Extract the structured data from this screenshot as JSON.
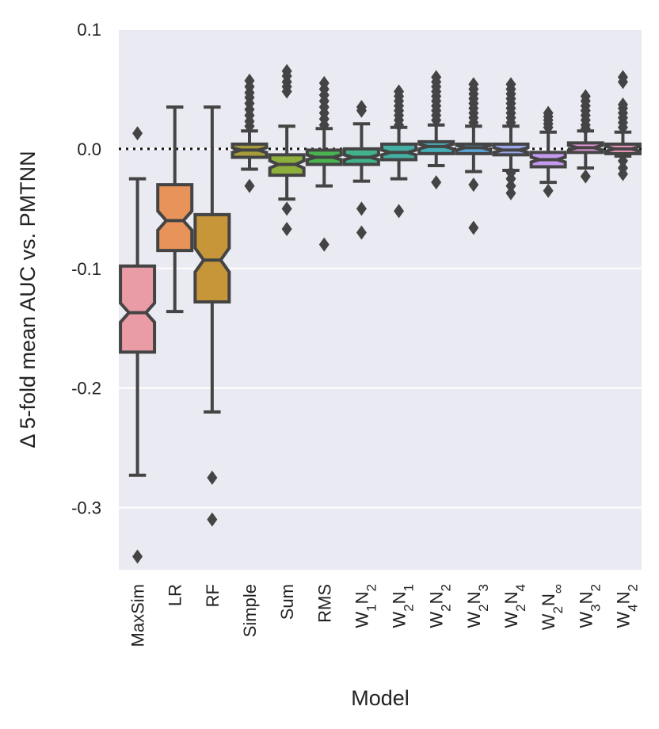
{
  "chart_data": {
    "type": "boxplot",
    "xlabel": "Model",
    "ylabel": "Δ 5-fold mean AUC vs. PMTNN",
    "ylim": [
      -0.352,
      0.1
    ],
    "yticks": [
      0.1,
      0.0,
      -0.1,
      -0.2,
      -0.3
    ],
    "ytick_labels": [
      "0.1",
      "0.0",
      "-0.1",
      "-0.2",
      "-0.3"
    ],
    "reference_line": {
      "y": 0.0,
      "style": "dotted"
    },
    "grid": true,
    "background": "#eaeaf2",
    "categories": [
      {
        "label": "MaxSim",
        "base": "MaxSim",
        "sub": ""
      },
      {
        "label": "LR",
        "base": "LR",
        "sub": ""
      },
      {
        "label": "RF",
        "base": "RF",
        "sub": ""
      },
      {
        "label": "Simple",
        "base": "Simple",
        "sub": ""
      },
      {
        "label": "Sum",
        "base": "Sum",
        "sub": ""
      },
      {
        "label": "RMS",
        "base": "RMS",
        "sub": ""
      },
      {
        "label": "W1N2",
        "base": "W",
        "sub": "1",
        "base2": "N",
        "sub2": "2"
      },
      {
        "label": "W2N1",
        "base": "W",
        "sub": "2",
        "base2": "N",
        "sub2": "1"
      },
      {
        "label": "W2N2",
        "base": "W",
        "sub": "2",
        "base2": "N",
        "sub2": "2"
      },
      {
        "label": "W2N3",
        "base": "W",
        "sub": "2",
        "base2": "N",
        "sub2": "3"
      },
      {
        "label": "W2N4",
        "base": "W",
        "sub": "2",
        "base2": "N",
        "sub2": "4"
      },
      {
        "label": "W2N∞",
        "base": "W",
        "sub": "2",
        "base2": "N",
        "sub2": "∞"
      },
      {
        "label": "W3N2",
        "base": "W",
        "sub": "3",
        "base2": "N",
        "sub2": "2"
      },
      {
        "label": "W4N2",
        "base": "W",
        "sub": "4",
        "base2": "N",
        "sub2": "2"
      }
    ],
    "boxes": [
      {
        "model": "MaxSim",
        "color": "#e99ca6",
        "q1": -0.17,
        "median": -0.137,
        "q3": -0.098,
        "notch_low": -0.145,
        "notch_high": -0.129,
        "whisker_low": -0.273,
        "whisker_high": -0.025,
        "outliers": [
          0.013,
          -0.341
        ]
      },
      {
        "model": "LR",
        "color": "#e8935a",
        "q1": -0.085,
        "median": -0.06,
        "q3": -0.03,
        "notch_low": -0.068,
        "notch_high": -0.052,
        "whisker_low": -0.136,
        "whisker_high": 0.035,
        "outliers": []
      },
      {
        "model": "RF",
        "color": "#c79639",
        "q1": -0.128,
        "median": -0.093,
        "q3": -0.055,
        "notch_low": -0.103,
        "notch_high": -0.083,
        "whisker_low": -0.22,
        "whisker_high": 0.035,
        "outliers": [
          -0.275,
          -0.31
        ]
      },
      {
        "model": "Simple",
        "color": "#a69c3a",
        "q1": -0.007,
        "median": -0.001,
        "q3": 0.004,
        "notch_low": -0.003,
        "notch_high": 0.001,
        "whisker_low": -0.017,
        "whisker_high": 0.015,
        "outliers": [
          0.057,
          0.052,
          0.047,
          0.043,
          0.038,
          0.033,
          0.028,
          0.023,
          0.019,
          -0.031
        ]
      },
      {
        "model": "Sum",
        "color": "#8daf3c",
        "q1": -0.022,
        "median": -0.013,
        "q3": -0.005,
        "notch_low": -0.016,
        "notch_high": -0.01,
        "whisker_low": -0.042,
        "whisker_high": 0.019,
        "outliers": [
          0.065,
          0.061,
          0.056,
          0.052,
          0.048,
          -0.05,
          -0.067
        ]
      },
      {
        "model": "RMS",
        "color": "#4ab34f",
        "q1": -0.013,
        "median": -0.007,
        "q3": -0.001,
        "notch_low": -0.009,
        "notch_high": -0.005,
        "whisker_low": -0.031,
        "whisker_high": 0.017,
        "outliers": [
          0.055,
          0.05,
          0.045,
          0.04,
          0.035,
          0.03,
          0.025,
          0.02,
          -0.08
        ]
      },
      {
        "model": "W1N2",
        "color": "#42b28c",
        "q1": -0.013,
        "median": -0.007,
        "q3": 0.0,
        "notch_low": -0.009,
        "notch_high": -0.005,
        "whisker_low": -0.027,
        "whisker_high": 0.021,
        "outliers": [
          0.035,
          0.032,
          -0.05,
          -0.07
        ]
      },
      {
        "model": "W2N1",
        "color": "#43b0a3",
        "q1": -0.009,
        "median": -0.003,
        "q3": 0.004,
        "notch_low": -0.005,
        "notch_high": -0.001,
        "whisker_low": -0.025,
        "whisker_high": 0.018,
        "outliers": [
          0.048,
          0.044,
          0.04,
          0.036,
          0.032,
          0.028,
          0.024,
          0.02,
          -0.052
        ]
      },
      {
        "model": "W2N2",
        "color": "#45aeb6",
        "q1": -0.004,
        "median": 0.002,
        "q3": 0.006,
        "notch_low": 0.0,
        "notch_high": 0.004,
        "whisker_low": -0.014,
        "whisker_high": 0.02,
        "outliers": [
          0.06,
          0.056,
          0.052,
          0.048,
          0.044,
          0.04,
          0.036,
          0.032,
          0.028,
          0.024,
          -0.028
        ]
      },
      {
        "model": "W2N3",
        "color": "#5aa6d6",
        "q1": -0.004,
        "median": 0.001,
        "q3": 0.004,
        "notch_low": -0.001,
        "notch_high": 0.003,
        "whisker_low": -0.019,
        "whisker_high": 0.019,
        "outliers": [
          0.054,
          0.05,
          0.046,
          0.042,
          0.038,
          0.034,
          0.03,
          0.026,
          0.022,
          -0.03,
          -0.066
        ]
      },
      {
        "model": "W2N4",
        "color": "#99a7e8",
        "q1": -0.005,
        "median": -0.001,
        "q3": 0.004,
        "notch_low": -0.003,
        "notch_high": 0.001,
        "whisker_low": -0.018,
        "whisker_high": 0.019,
        "outliers": [
          0.054,
          0.05,
          0.046,
          0.042,
          0.038,
          0.034,
          0.03,
          0.026,
          0.022,
          -0.02,
          -0.025,
          -0.031,
          -0.037
        ]
      },
      {
        "model": "W2N∞",
        "color": "#c39aee",
        "q1": -0.015,
        "median": -0.009,
        "q3": -0.003,
        "notch_low": -0.011,
        "notch_high": -0.007,
        "whisker_low": -0.028,
        "whisker_high": 0.014,
        "outliers": [
          0.03,
          0.027,
          0.024,
          0.021,
          0.018,
          -0.035
        ]
      },
      {
        "model": "W3N2",
        "color": "#e193d6",
        "q1": -0.003,
        "median": 0.001,
        "q3": 0.005,
        "notch_low": -0.001,
        "notch_high": 0.003,
        "whisker_low": -0.016,
        "whisker_high": 0.015,
        "outliers": [
          0.044,
          0.04,
          0.036,
          0.032,
          0.028,
          0.024,
          0.02,
          0.017,
          -0.023
        ]
      },
      {
        "model": "W4N2",
        "color": "#ed98bd",
        "q1": -0.004,
        "median": 0.0,
        "q3": 0.004,
        "notch_low": -0.002,
        "notch_high": 0.002,
        "whisker_low": -0.006,
        "whisker_high": 0.014,
        "outliers": [
          0.06,
          0.056,
          0.037,
          0.034,
          0.03,
          0.026,
          0.022,
          0.018,
          -0.01,
          -0.016,
          -0.021
        ]
      }
    ]
  }
}
